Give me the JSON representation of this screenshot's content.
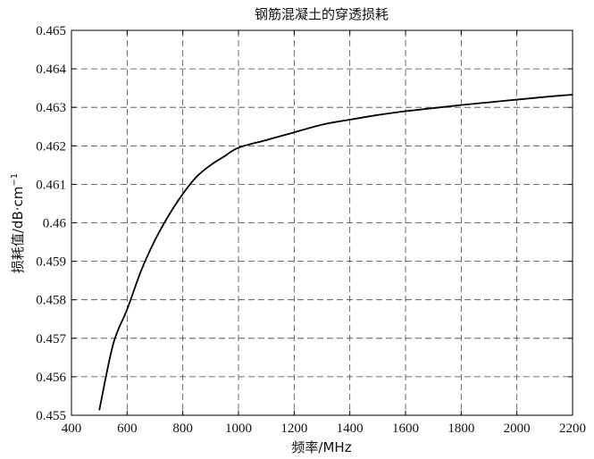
{
  "chart_data": {
    "type": "line",
    "title": "钢筋混凝土的穿透损耗",
    "xlabel": "频率/MHz",
    "ylabel": "损耗值/dB·cm",
    "ylabel_sup": "−1",
    "xlim": [
      400,
      2200
    ],
    "ylim": [
      0.455,
      0.465
    ],
    "grid": true,
    "x_ticks": [
      400,
      600,
      800,
      1000,
      1200,
      1400,
      1600,
      1800,
      2000,
      2200
    ],
    "x_tick_labels": [
      "400",
      "600",
      "800",
      "1000",
      "1200",
      "1400",
      "1600",
      "1800",
      "2000",
      "2200"
    ],
    "y_ticks": [
      0.455,
      0.456,
      0.457,
      0.458,
      0.459,
      0.46,
      0.461,
      0.462,
      0.463,
      0.464,
      0.465
    ],
    "y_tick_labels": [
      "0.455",
      "0.456",
      "0.457",
      "0.458",
      "0.459",
      "0.46",
      "0.461",
      "0.462",
      "0.463",
      "0.464",
      "0.465"
    ],
    "series": [
      {
        "x": [
          500,
          550,
          600,
          650,
          700,
          750,
          800,
          850,
          900,
          950,
          1000,
          1100,
          1200,
          1300,
          1400,
          1500,
          1600,
          1700,
          1800,
          1900,
          2000,
          2100,
          2200
        ],
        "y": [
          0.45513,
          0.45685,
          0.45775,
          0.45875,
          0.45955,
          0.4602,
          0.46075,
          0.4612,
          0.4615,
          0.46173,
          0.46195,
          0.46215,
          0.46235,
          0.46255,
          0.46268,
          0.4628,
          0.4629,
          0.46298,
          0.46306,
          0.46313,
          0.4632,
          0.46327,
          0.46333
        ]
      }
    ]
  }
}
